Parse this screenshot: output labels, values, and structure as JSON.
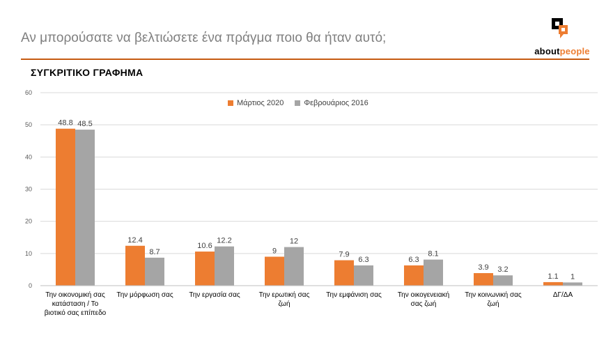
{
  "header": {
    "title": "Αν μπορούσατε να βελτιώσετε ένα πράγμα ποιο θα ήταν αυτό;",
    "logo_text_about": "about",
    "logo_text_people": "people"
  },
  "colors": {
    "accent_line": "#c55a11",
    "series_2020": "#ed7d31",
    "series_2016": "#a5a5a5"
  },
  "chart_data": {
    "type": "bar",
    "title": "ΣΥΓΚΡΙΤΙΚΟ ΓΡΑΦΗΜΑ",
    "xlabel": "",
    "ylabel": "",
    "ylim": [
      0,
      60
    ],
    "yticks": [
      0,
      10,
      20,
      30,
      40,
      50,
      60
    ],
    "grid": true,
    "legend_position": "top-center",
    "categories": [
      [
        "Την οικονομική σας",
        "κατάσταση / Το",
        "βιοτικό σας επίπεδο"
      ],
      [
        "Την μόρφωση σας"
      ],
      [
        "Την εργασία σας"
      ],
      [
        "Την ερωτική σας",
        "ζωή"
      ],
      [
        "Την εμφάνιση σας"
      ],
      [
        "Την οικογενειακή",
        "σας ζωή"
      ],
      [
        "Την κοινωνική σας",
        "ζωή"
      ],
      [
        "ΔΓ/ΔΑ"
      ]
    ],
    "series": [
      {
        "name": "Μάρτιος 2020",
        "color": "#ed7d31",
        "values": [
          48.8,
          12.4,
          10.6,
          9,
          7.9,
          6.3,
          3.9,
          1.1
        ]
      },
      {
        "name": "Φεβρουάριος 2016",
        "color": "#a5a5a5",
        "values": [
          48.5,
          8.7,
          12.2,
          12,
          6.3,
          8.1,
          3.2,
          1
        ]
      }
    ]
  }
}
